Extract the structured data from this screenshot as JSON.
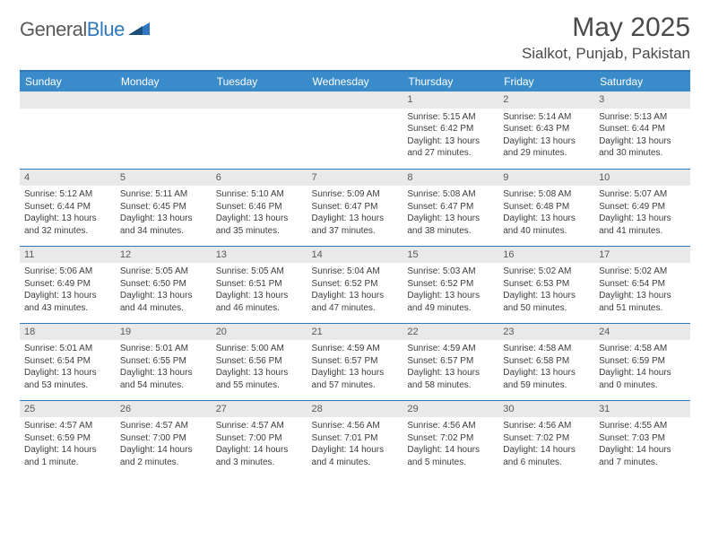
{
  "brand": {
    "part1": "General",
    "part2": "Blue"
  },
  "title": "May 2025",
  "location": "Sialkot, Punjab, Pakistan",
  "colors": {
    "header_bg": "#3a8bc9",
    "accent_border": "#2f78bd",
    "daynum_bg": "#e9e9e9",
    "text": "#3d3d3d",
    "title_text": "#4a4a4a"
  },
  "dow": [
    "Sunday",
    "Monday",
    "Tuesday",
    "Wednesday",
    "Thursday",
    "Friday",
    "Saturday"
  ],
  "weeks": [
    [
      null,
      null,
      null,
      null,
      {
        "n": "1",
        "sr": "Sunrise: 5:15 AM",
        "ss": "Sunset: 6:42 PM",
        "d1": "Daylight: 13 hours",
        "d2": "and 27 minutes."
      },
      {
        "n": "2",
        "sr": "Sunrise: 5:14 AM",
        "ss": "Sunset: 6:43 PM",
        "d1": "Daylight: 13 hours",
        "d2": "and 29 minutes."
      },
      {
        "n": "3",
        "sr": "Sunrise: 5:13 AM",
        "ss": "Sunset: 6:44 PM",
        "d1": "Daylight: 13 hours",
        "d2": "and 30 minutes."
      }
    ],
    [
      {
        "n": "4",
        "sr": "Sunrise: 5:12 AM",
        "ss": "Sunset: 6:44 PM",
        "d1": "Daylight: 13 hours",
        "d2": "and 32 minutes."
      },
      {
        "n": "5",
        "sr": "Sunrise: 5:11 AM",
        "ss": "Sunset: 6:45 PM",
        "d1": "Daylight: 13 hours",
        "d2": "and 34 minutes."
      },
      {
        "n": "6",
        "sr": "Sunrise: 5:10 AM",
        "ss": "Sunset: 6:46 PM",
        "d1": "Daylight: 13 hours",
        "d2": "and 35 minutes."
      },
      {
        "n": "7",
        "sr": "Sunrise: 5:09 AM",
        "ss": "Sunset: 6:47 PM",
        "d1": "Daylight: 13 hours",
        "d2": "and 37 minutes."
      },
      {
        "n": "8",
        "sr": "Sunrise: 5:08 AM",
        "ss": "Sunset: 6:47 PM",
        "d1": "Daylight: 13 hours",
        "d2": "and 38 minutes."
      },
      {
        "n": "9",
        "sr": "Sunrise: 5:08 AM",
        "ss": "Sunset: 6:48 PM",
        "d1": "Daylight: 13 hours",
        "d2": "and 40 minutes."
      },
      {
        "n": "10",
        "sr": "Sunrise: 5:07 AM",
        "ss": "Sunset: 6:49 PM",
        "d1": "Daylight: 13 hours",
        "d2": "and 41 minutes."
      }
    ],
    [
      {
        "n": "11",
        "sr": "Sunrise: 5:06 AM",
        "ss": "Sunset: 6:49 PM",
        "d1": "Daylight: 13 hours",
        "d2": "and 43 minutes."
      },
      {
        "n": "12",
        "sr": "Sunrise: 5:05 AM",
        "ss": "Sunset: 6:50 PM",
        "d1": "Daylight: 13 hours",
        "d2": "and 44 minutes."
      },
      {
        "n": "13",
        "sr": "Sunrise: 5:05 AM",
        "ss": "Sunset: 6:51 PM",
        "d1": "Daylight: 13 hours",
        "d2": "and 46 minutes."
      },
      {
        "n": "14",
        "sr": "Sunrise: 5:04 AM",
        "ss": "Sunset: 6:52 PM",
        "d1": "Daylight: 13 hours",
        "d2": "and 47 minutes."
      },
      {
        "n": "15",
        "sr": "Sunrise: 5:03 AM",
        "ss": "Sunset: 6:52 PM",
        "d1": "Daylight: 13 hours",
        "d2": "and 49 minutes."
      },
      {
        "n": "16",
        "sr": "Sunrise: 5:02 AM",
        "ss": "Sunset: 6:53 PM",
        "d1": "Daylight: 13 hours",
        "d2": "and 50 minutes."
      },
      {
        "n": "17",
        "sr": "Sunrise: 5:02 AM",
        "ss": "Sunset: 6:54 PM",
        "d1": "Daylight: 13 hours",
        "d2": "and 51 minutes."
      }
    ],
    [
      {
        "n": "18",
        "sr": "Sunrise: 5:01 AM",
        "ss": "Sunset: 6:54 PM",
        "d1": "Daylight: 13 hours",
        "d2": "and 53 minutes."
      },
      {
        "n": "19",
        "sr": "Sunrise: 5:01 AM",
        "ss": "Sunset: 6:55 PM",
        "d1": "Daylight: 13 hours",
        "d2": "and 54 minutes."
      },
      {
        "n": "20",
        "sr": "Sunrise: 5:00 AM",
        "ss": "Sunset: 6:56 PM",
        "d1": "Daylight: 13 hours",
        "d2": "and 55 minutes."
      },
      {
        "n": "21",
        "sr": "Sunrise: 4:59 AM",
        "ss": "Sunset: 6:57 PM",
        "d1": "Daylight: 13 hours",
        "d2": "and 57 minutes."
      },
      {
        "n": "22",
        "sr": "Sunrise: 4:59 AM",
        "ss": "Sunset: 6:57 PM",
        "d1": "Daylight: 13 hours",
        "d2": "and 58 minutes."
      },
      {
        "n": "23",
        "sr": "Sunrise: 4:58 AM",
        "ss": "Sunset: 6:58 PM",
        "d1": "Daylight: 13 hours",
        "d2": "and 59 minutes."
      },
      {
        "n": "24",
        "sr": "Sunrise: 4:58 AM",
        "ss": "Sunset: 6:59 PM",
        "d1": "Daylight: 14 hours",
        "d2": "and 0 minutes."
      }
    ],
    [
      {
        "n": "25",
        "sr": "Sunrise: 4:57 AM",
        "ss": "Sunset: 6:59 PM",
        "d1": "Daylight: 14 hours",
        "d2": "and 1 minute."
      },
      {
        "n": "26",
        "sr": "Sunrise: 4:57 AM",
        "ss": "Sunset: 7:00 PM",
        "d1": "Daylight: 14 hours",
        "d2": "and 2 minutes."
      },
      {
        "n": "27",
        "sr": "Sunrise: 4:57 AM",
        "ss": "Sunset: 7:00 PM",
        "d1": "Daylight: 14 hours",
        "d2": "and 3 minutes."
      },
      {
        "n": "28",
        "sr": "Sunrise: 4:56 AM",
        "ss": "Sunset: 7:01 PM",
        "d1": "Daylight: 14 hours",
        "d2": "and 4 minutes."
      },
      {
        "n": "29",
        "sr": "Sunrise: 4:56 AM",
        "ss": "Sunset: 7:02 PM",
        "d1": "Daylight: 14 hours",
        "d2": "and 5 minutes."
      },
      {
        "n": "30",
        "sr": "Sunrise: 4:56 AM",
        "ss": "Sunset: 7:02 PM",
        "d1": "Daylight: 14 hours",
        "d2": "and 6 minutes."
      },
      {
        "n": "31",
        "sr": "Sunrise: 4:55 AM",
        "ss": "Sunset: 7:03 PM",
        "d1": "Daylight: 14 hours",
        "d2": "and 7 minutes."
      }
    ]
  ]
}
